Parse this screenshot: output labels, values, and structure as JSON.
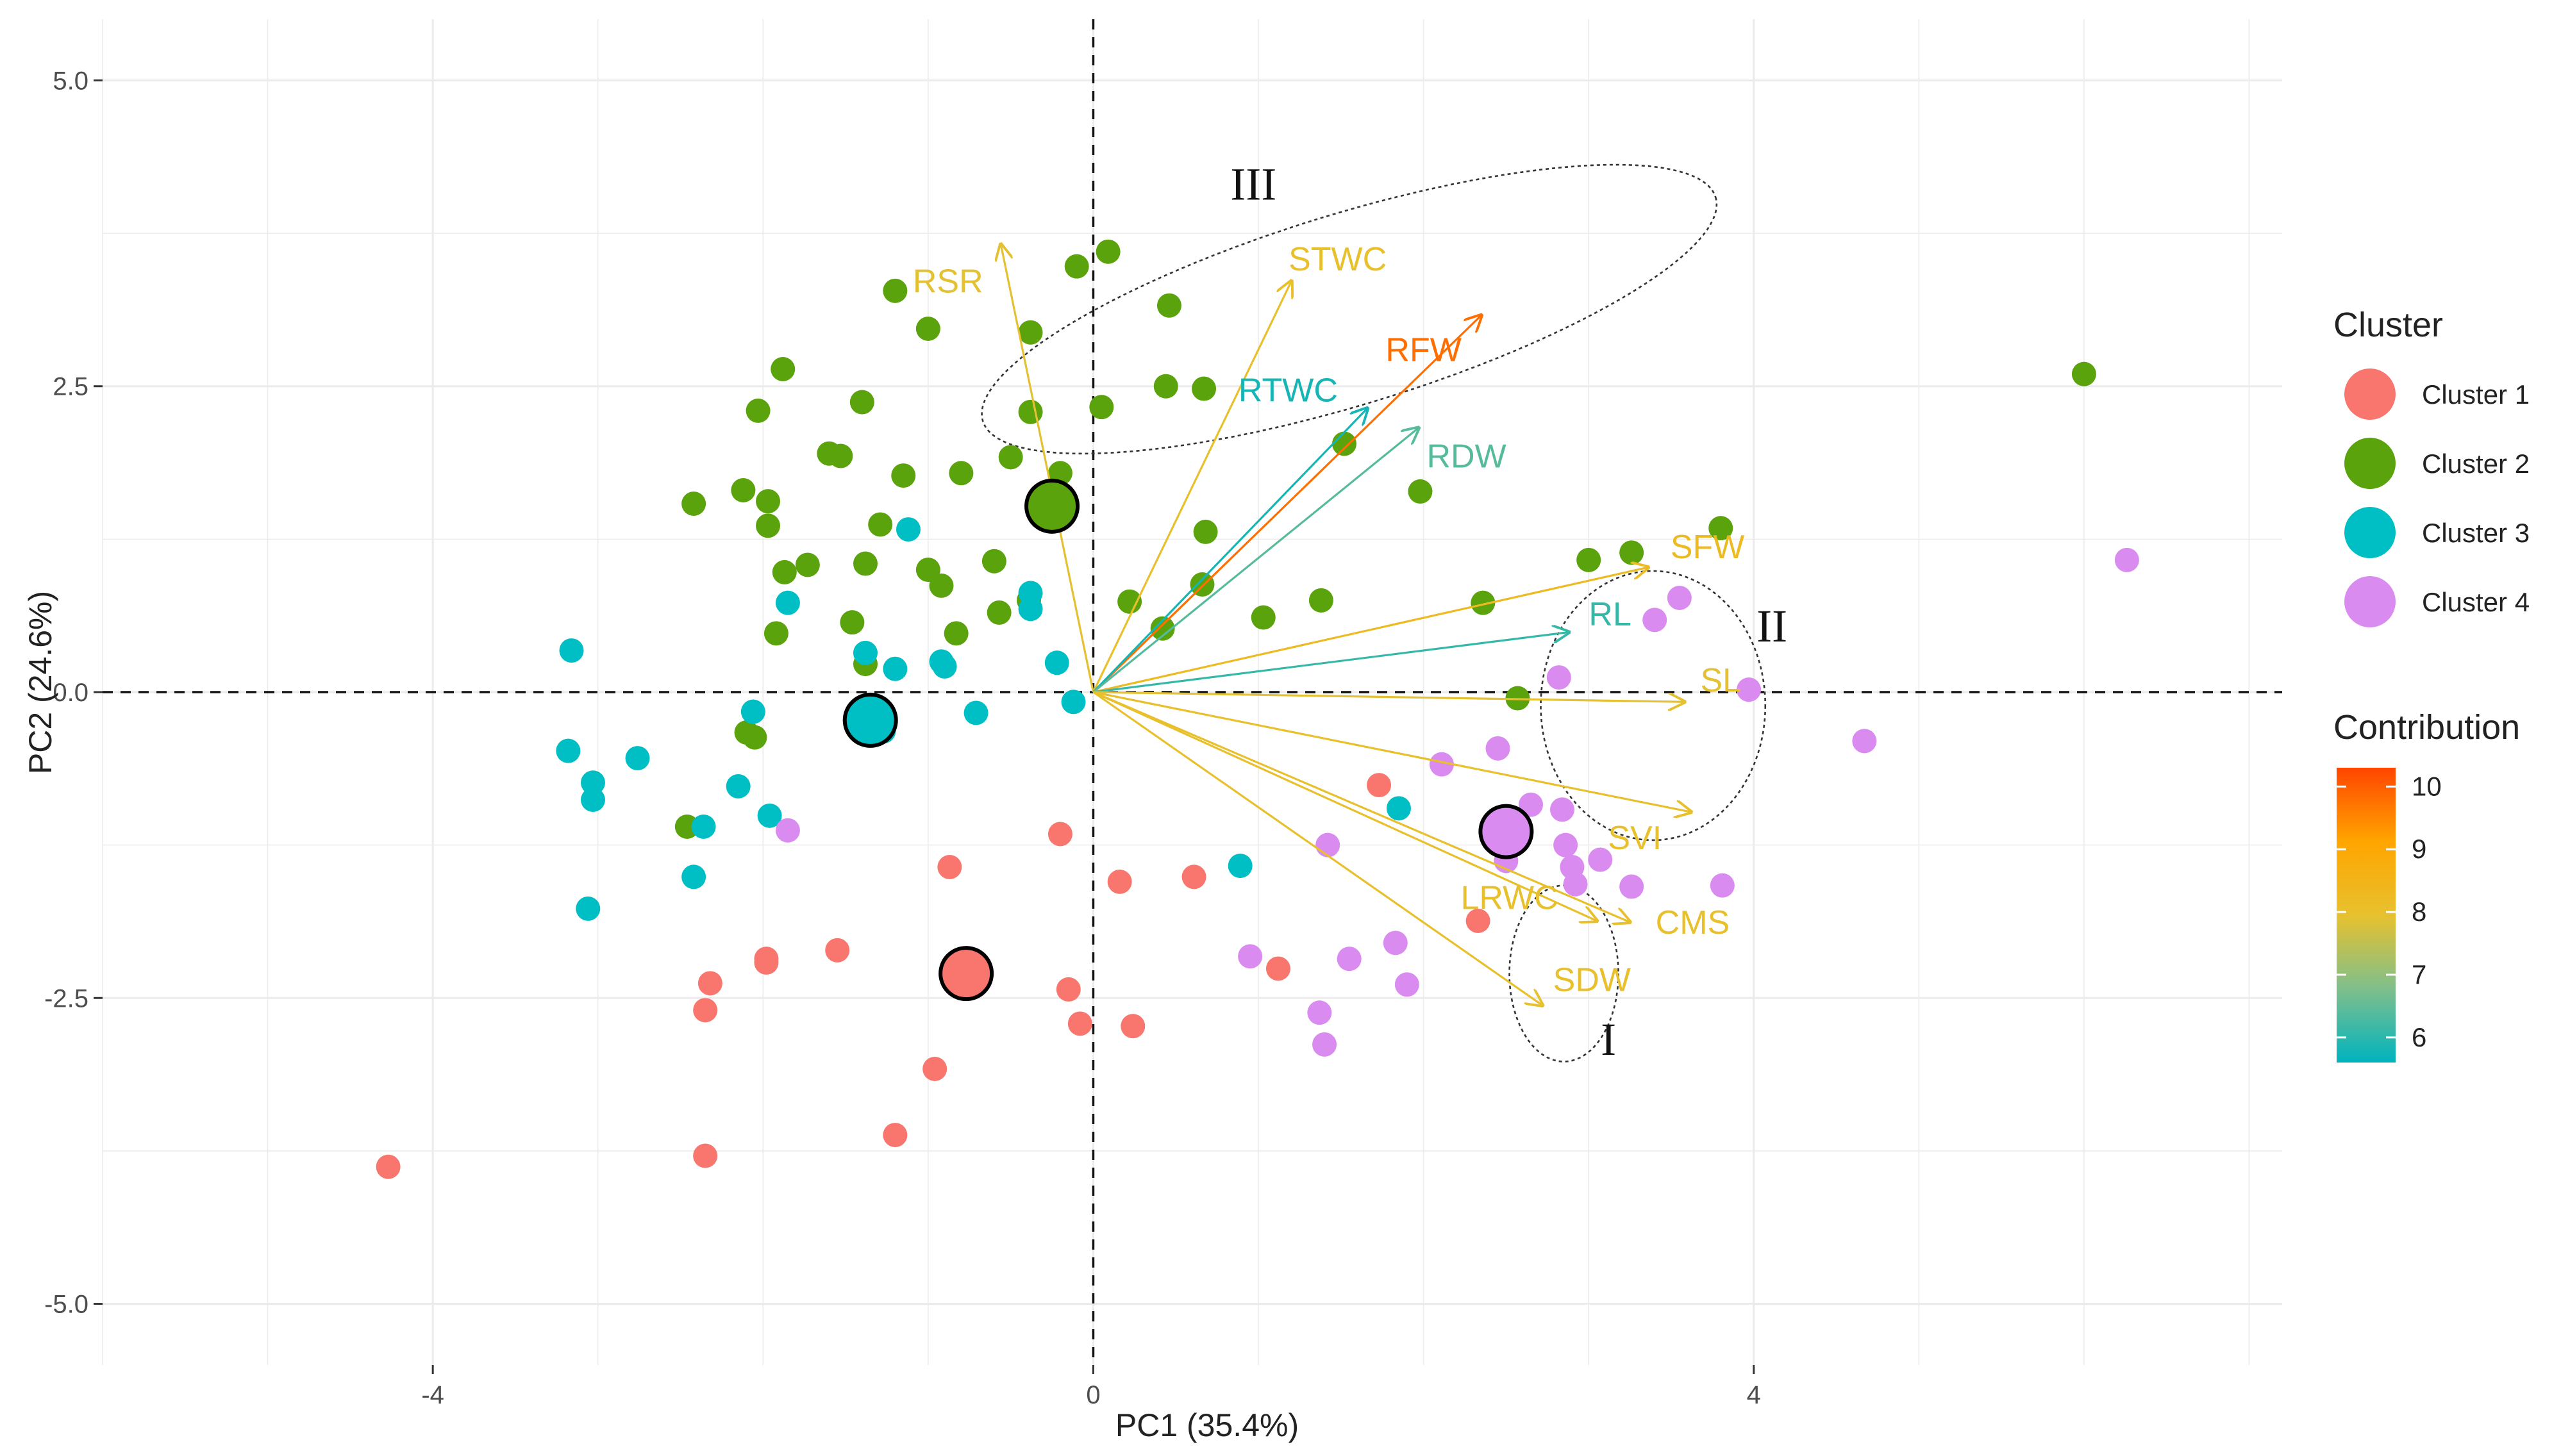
{
  "chart_data": {
    "type": "scatter",
    "subtype": "pca-biplot",
    "xlabel": "PC1 (35.4%)",
    "ylabel": "PC2 (24.6%)",
    "xlim": [
      -6.0,
      7.2
    ],
    "ylim": [
      -5.5,
      5.5
    ],
    "xticks": [
      {
        "value": -4,
        "label": "-4"
      },
      {
        "value": 0,
        "label": "0"
      },
      {
        "value": 4,
        "label": "4"
      }
    ],
    "yticks": [
      {
        "value": 5,
        "label": "5.0"
      },
      {
        "value": 2.5,
        "label": "2.5"
      },
      {
        "value": 0,
        "label": "0.0"
      },
      {
        "value": -2.5,
        "label": "-2.5"
      },
      {
        "value": -5,
        "label": "-5.0"
      }
    ],
    "grid": true,
    "colors": {
      "cluster1": "#F8766D",
      "cluster2": "#5BA30C",
      "cluster3": "#00BFC4",
      "cluster4": "#D98BF0"
    },
    "legend": {
      "cluster_title": "Cluster",
      "clusters": [
        "Cluster 1",
        "Cluster 2",
        "Cluster 3",
        "Cluster 4"
      ],
      "contribution_title": "Contribution",
      "contribution_ticks": [
        "10",
        "9",
        "8",
        "7",
        "6"
      ],
      "contribution_range": [
        5.6,
        10.3
      ]
    },
    "series": [
      {
        "name": "Cluster 1",
        "color_key": "cluster1",
        "points": [
          [
            -4.27,
            -3.88
          ],
          [
            -2.32,
            -2.38
          ],
          [
            -2.35,
            -2.6
          ],
          [
            -2.35,
            -3.79
          ],
          [
            -1.98,
            -2.18
          ],
          [
            -1.98,
            -2.21
          ],
          [
            -1.55,
            -2.11
          ],
          [
            -1.2,
            -3.62
          ],
          [
            -0.96,
            -3.08
          ],
          [
            -0.87,
            -1.43
          ],
          [
            -0.2,
            -1.16
          ],
          [
            -0.15,
            -2.43
          ],
          [
            -0.08,
            -2.71
          ],
          [
            0.16,
            -1.55
          ],
          [
            0.24,
            -2.73
          ],
          [
            0.61,
            -1.51
          ],
          [
            1.12,
            -2.26
          ],
          [
            1.73,
            -0.76
          ],
          [
            2.33,
            -1.87
          ]
        ]
      },
      {
        "name": "Cluster 2",
        "color_key": "cluster2",
        "points": [
          [
            -0.1,
            3.48
          ],
          [
            0.09,
            3.6
          ],
          [
            -1.2,
            3.28
          ],
          [
            -1.0,
            2.97
          ],
          [
            -1.88,
            2.64
          ],
          [
            -2.03,
            2.3
          ],
          [
            -1.4,
            2.37
          ],
          [
            -1.6,
            1.95
          ],
          [
            -1.53,
            1.93
          ],
          [
            0.46,
            3.16
          ],
          [
            -0.38,
            2.94
          ],
          [
            0.05,
            2.33
          ],
          [
            0.44,
            2.5
          ],
          [
            0.67,
            2.48
          ],
          [
            -0.38,
            2.29
          ],
          [
            -1.15,
            1.77
          ],
          [
            -0.8,
            1.79
          ],
          [
            -0.5,
            1.92
          ],
          [
            -0.2,
            1.79
          ],
          [
            -2.42,
            1.54
          ],
          [
            -2.12,
            1.65
          ],
          [
            -1.97,
            1.56
          ],
          [
            -1.97,
            1.36
          ],
          [
            -1.29,
            1.37
          ],
          [
            -1.87,
            0.98
          ],
          [
            -1.73,
            1.04
          ],
          [
            -1.38,
            1.05
          ],
          [
            -1.0,
            1.0
          ],
          [
            -0.92,
            0.87
          ],
          [
            -0.6,
            1.07
          ],
          [
            -0.83,
            0.48
          ],
          [
            -0.57,
            0.65
          ],
          [
            -0.39,
            0.75
          ],
          [
            -1.46,
            0.57
          ],
          [
            -1.38,
            0.23
          ],
          [
            -1.92,
            0.48
          ],
          [
            -2.1,
            -0.33
          ],
          [
            -2.05,
            -0.37
          ],
          [
            -2.46,
            -1.1
          ],
          [
            0.22,
            0.74
          ],
          [
            0.66,
            0.88
          ],
          [
            0.42,
            0.52
          ],
          [
            0.68,
            1.31
          ],
          [
            1.03,
            0.61
          ],
          [
            1.38,
            0.75
          ],
          [
            1.52,
            2.03
          ],
          [
            1.98,
            1.64
          ],
          [
            3.0,
            1.08
          ],
          [
            3.26,
            1.14
          ],
          [
            3.8,
            1.34
          ],
          [
            2.36,
            0.73
          ],
          [
            2.57,
            -0.05
          ],
          [
            6.0,
            2.6
          ]
        ]
      },
      {
        "name": "Cluster 3",
        "color_key": "cluster3",
        "points": [
          [
            -3.16,
            0.34
          ],
          [
            -3.18,
            -0.48
          ],
          [
            -3.03,
            -0.74
          ],
          [
            -3.03,
            -0.88
          ],
          [
            -2.76,
            -0.54
          ],
          [
            -2.42,
            -1.51
          ],
          [
            -2.36,
            -1.1
          ],
          [
            -3.06,
            -1.77
          ],
          [
            -2.15,
            -0.77
          ],
          [
            -2.06,
            -0.16
          ],
          [
            -1.96,
            -1.01
          ],
          [
            -1.85,
            0.73
          ],
          [
            -1.4,
            -0.26
          ],
          [
            -1.27,
            -0.32
          ],
          [
            -1.38,
            0.32
          ],
          [
            -1.2,
            0.19
          ],
          [
            -1.12,
            1.33
          ],
          [
            -0.9,
            0.21
          ],
          [
            -0.92,
            0.25
          ],
          [
            -0.71,
            -0.17
          ],
          [
            -0.38,
            0.81
          ],
          [
            -0.38,
            0.68
          ],
          [
            -0.22,
            0.24
          ],
          [
            -0.12,
            -0.08
          ],
          [
            0.89,
            -1.42
          ],
          [
            1.85,
            -0.95
          ]
        ]
      },
      {
        "name": "Cluster 4",
        "color_key": "cluster4",
        "points": [
          [
            -1.85,
            -1.13
          ],
          [
            1.42,
            -1.25
          ],
          [
            0.95,
            -2.16
          ],
          [
            1.55,
            -2.18
          ],
          [
            1.83,
            -2.05
          ],
          [
            1.9,
            -2.39
          ],
          [
            1.37,
            -2.62
          ],
          [
            1.4,
            -2.88
          ],
          [
            2.11,
            -0.59
          ],
          [
            2.45,
            -0.46
          ],
          [
            2.65,
            -0.92
          ],
          [
            2.84,
            -0.96
          ],
          [
            2.5,
            -1.38
          ],
          [
            2.86,
            -1.25
          ],
          [
            2.9,
            -1.43
          ],
          [
            2.92,
            -1.57
          ],
          [
            3.07,
            -1.37
          ],
          [
            3.26,
            -1.59
          ],
          [
            3.81,
            -1.58
          ],
          [
            3.4,
            0.59
          ],
          [
            3.55,
            0.77
          ],
          [
            2.82,
            0.12
          ],
          [
            3.97,
            0.02
          ],
          [
            4.67,
            -0.4
          ],
          [
            6.26,
            1.08
          ]
        ]
      }
    ],
    "centroids": [
      {
        "cluster": "Cluster 1",
        "color_key": "cluster1",
        "x": -0.77,
        "y": -2.3
      },
      {
        "cluster": "Cluster 2",
        "color_key": "cluster2",
        "x": -0.25,
        "y": 1.52
      },
      {
        "cluster": "Cluster 3",
        "color_key": "cluster3",
        "x": -1.35,
        "y": -0.23
      },
      {
        "cluster": "Cluster 4",
        "color_key": "cluster4",
        "x": 2.5,
        "y": -1.14
      }
    ],
    "variables": [
      {
        "label": "RSR",
        "x": -0.56,
        "y": 3.66,
        "contribution": 7.9,
        "label_pos": [
          -0.88,
          3.36
        ]
      },
      {
        "label": "STWC",
        "x": 1.2,
        "y": 3.36,
        "contribution": 8.0,
        "label_pos": [
          1.48,
          3.54
        ]
      },
      {
        "label": "RFW",
        "x": 2.35,
        "y": 3.08,
        "contribution": 9.8,
        "label_pos": [
          2.0,
          2.8
        ]
      },
      {
        "label": "RTWC",
        "x": 1.66,
        "y": 2.32,
        "contribution": 5.8,
        "label_pos": [
          1.18,
          2.47
        ]
      },
      {
        "label": "RDW",
        "x": 1.97,
        "y": 2.16,
        "contribution": 6.4,
        "label_pos": [
          2.26,
          1.93
        ]
      },
      {
        "label": "SFW",
        "x": 3.36,
        "y": 1.02,
        "contribution": 8.2,
        "label_pos": [
          3.72,
          1.19
        ]
      },
      {
        "label": "RL",
        "x": 2.88,
        "y": 0.49,
        "contribution": 6.1,
        "label_pos": [
          3.13,
          0.64
        ]
      },
      {
        "label": "SL",
        "x": 3.58,
        "y": -0.08,
        "contribution": 7.9,
        "label_pos": [
          3.8,
          0.1
        ]
      },
      {
        "label": "SVI",
        "x": 3.62,
        "y": -0.98,
        "contribution": 8.0,
        "label_pos": [
          3.28,
          -1.19
        ]
      },
      {
        "label": "LRWC",
        "x": 3.05,
        "y": -1.87,
        "contribution": 8.0,
        "label_pos": [
          2.52,
          -1.68
        ]
      },
      {
        "label": "CMS",
        "x": 3.25,
        "y": -1.88,
        "contribution": 8.0,
        "label_pos": [
          3.63,
          -1.88
        ]
      },
      {
        "label": "SDW",
        "x": 2.72,
        "y": -2.56,
        "contribution": 8.0,
        "label_pos": [
          3.02,
          -2.35
        ]
      }
    ],
    "annotations": [
      {
        "label": "III",
        "cx": 1.55,
        "cy": 3.13,
        "rx": 2.32,
        "ry": 0.78,
        "rotate": -17,
        "label_pos": [
          0.97,
          4.15
        ]
      },
      {
        "label": "II",
        "cx": 3.39,
        "cy": -0.11,
        "rx": 0.68,
        "ry": 1.1,
        "rotate": 0,
        "label_pos": [
          4.11,
          0.54
        ]
      },
      {
        "label": "I",
        "cx": 2.85,
        "cy": -2.3,
        "rx": 0.33,
        "ry": 0.72,
        "rotate": 0,
        "label_pos": [
          3.12,
          -2.84
        ]
      }
    ]
  }
}
